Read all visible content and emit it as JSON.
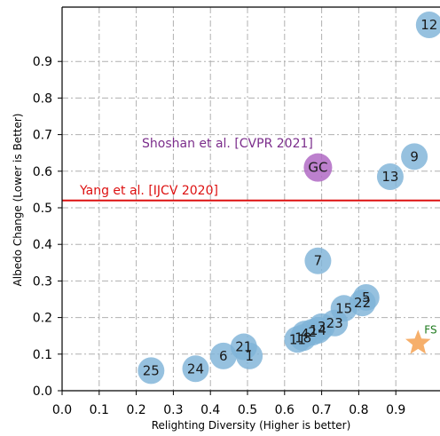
{
  "chart_data": {
    "type": "scatter",
    "xlabel": "Relighting Diversity (Higher is better)",
    "ylabel": "Albedo Change (Lower is Better)",
    "xlim": [
      0.0,
      1.0
    ],
    "ylim": [
      0.0,
      1.0
    ],
    "x_ticks": [
      "0.0",
      "0.1",
      "0.2",
      "0.3",
      "0.4",
      "0.5",
      "0.6",
      "0.7",
      "0.8",
      "0.9"
    ],
    "y_ticks": [
      "0.0",
      "0.1",
      "0.2",
      "0.3",
      "0.4",
      "0.5",
      "0.6",
      "0.7",
      "0.8",
      "0.9"
    ],
    "grid": true,
    "colors": {
      "points": "#7fb3d8",
      "gc": "#b06ac4",
      "fs": "#f5a65b",
      "yang": "#dd1111",
      "shoshan": "#7b2d8b",
      "fs_label": "#1e7a1e"
    },
    "points": [
      {
        "label": "12",
        "x": 0.99,
        "y": 1.0
      },
      {
        "label": "9",
        "x": 0.95,
        "y": 0.64
      },
      {
        "label": "13",
        "x": 0.885,
        "y": 0.585
      },
      {
        "label": "7",
        "x": 0.69,
        "y": 0.355
      },
      {
        "label": "5",
        "x": 0.82,
        "y": 0.255
      },
      {
        "label": "22",
        "x": 0.81,
        "y": 0.24
      },
      {
        "label": "15",
        "x": 0.76,
        "y": 0.225
      },
      {
        "label": "23",
        "x": 0.735,
        "y": 0.185
      },
      {
        "label": "3",
        "x": 0.7,
        "y": 0.175
      },
      {
        "label": "14",
        "x": 0.69,
        "y": 0.165
      },
      {
        "label": "2",
        "x": 0.675,
        "y": 0.16
      },
      {
        "label": "4",
        "x": 0.655,
        "y": 0.155
      },
      {
        "label": "18",
        "x": 0.65,
        "y": 0.145
      },
      {
        "label": "11",
        "x": 0.635,
        "y": 0.14
      },
      {
        "label": "21",
        "x": 0.49,
        "y": 0.12
      },
      {
        "label": "1",
        "x": 0.505,
        "y": 0.095
      },
      {
        "label": "6",
        "x": 0.435,
        "y": 0.095
      },
      {
        "label": "24",
        "x": 0.36,
        "y": 0.06
      },
      {
        "label": "25",
        "x": 0.24,
        "y": 0.055
      }
    ],
    "gc_point": {
      "label": "GC",
      "x": 0.69,
      "y": 0.61
    },
    "fs_point": {
      "label": "FS",
      "x": 0.96,
      "y": 0.13
    },
    "reference_line": {
      "label": "Yang et al. [IJCV 2020]",
      "y": 0.52
    },
    "annotation": {
      "text": "Shoshan et al. [CVPR 2021]"
    }
  }
}
